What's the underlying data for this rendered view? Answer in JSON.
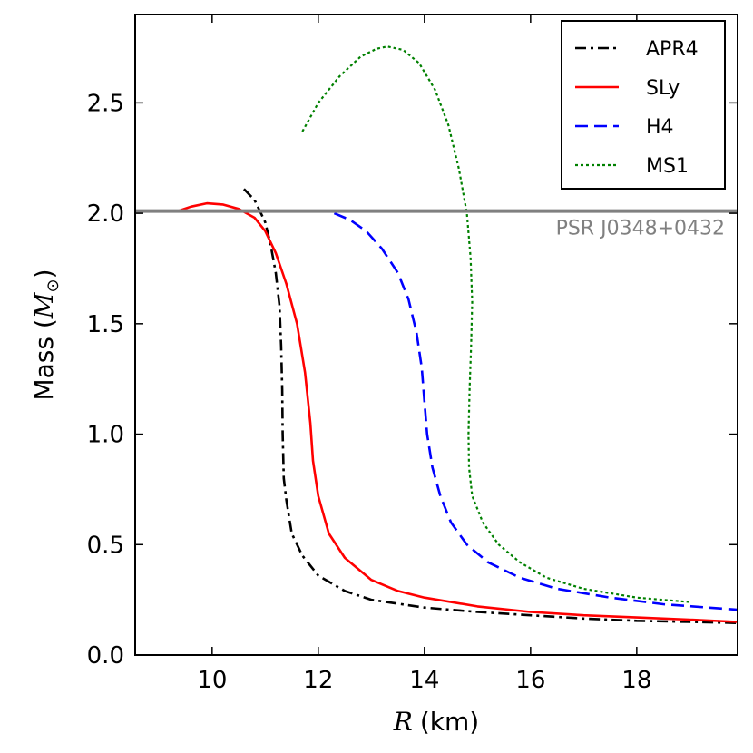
{
  "chart_data": {
    "type": "line",
    "title": "",
    "xlabel_var": "R",
    "xlabel_unit": "(km)",
    "ylabel_text": "Mass (",
    "ylabel_var": "M",
    "ylabel_sub": "⊙",
    "ylabel_close": ")",
    "xlim": [
      8.55,
      19.9
    ],
    "ylim": [
      0.0,
      2.9
    ],
    "x_ticks": [
      10,
      12,
      14,
      16,
      18
    ],
    "y_ticks": [
      0.0,
      0.5,
      1.0,
      1.5,
      2.0,
      2.5
    ],
    "x_tick_labels": [
      "10",
      "12",
      "14",
      "16",
      "18"
    ],
    "y_tick_labels": [
      "0.0",
      "0.5",
      "1.0",
      "1.5",
      "2.0",
      "2.5"
    ],
    "reference_line": {
      "label": "PSR J0348+0432",
      "mass": 2.01,
      "color": "#808080"
    },
    "legend_position": "top-right",
    "series": [
      {
        "name": "APR4",
        "color": "#000000",
        "style": "dashdot",
        "points": [
          [
            10.6,
            2.11
          ],
          [
            10.8,
            2.06
          ],
          [
            11.0,
            1.96
          ],
          [
            11.1,
            1.86
          ],
          [
            11.2,
            1.73
          ],
          [
            11.27,
            1.58
          ],
          [
            11.3,
            1.4
          ],
          [
            11.32,
            1.2
          ],
          [
            11.33,
            1.0
          ],
          [
            11.35,
            0.8
          ],
          [
            11.4,
            0.7
          ],
          [
            11.5,
            0.55
          ],
          [
            11.7,
            0.45
          ],
          [
            12.0,
            0.36
          ],
          [
            12.5,
            0.29
          ],
          [
            13.0,
            0.25
          ],
          [
            14.0,
            0.215
          ],
          [
            15.0,
            0.195
          ],
          [
            16.0,
            0.18
          ],
          [
            17.0,
            0.165
          ],
          [
            18.0,
            0.155
          ],
          [
            19.0,
            0.15
          ],
          [
            19.9,
            0.145
          ]
        ]
      },
      {
        "name": "SLy",
        "color": "#ff0000",
        "style": "solid",
        "points": [
          [
            9.35,
            2.01
          ],
          [
            9.6,
            2.03
          ],
          [
            9.9,
            2.045
          ],
          [
            10.2,
            2.04
          ],
          [
            10.5,
            2.02
          ],
          [
            10.8,
            1.98
          ],
          [
            11.0,
            1.92
          ],
          [
            11.2,
            1.82
          ],
          [
            11.4,
            1.68
          ],
          [
            11.6,
            1.5
          ],
          [
            11.75,
            1.28
          ],
          [
            11.85,
            1.05
          ],
          [
            11.9,
            0.88
          ],
          [
            12.0,
            0.72
          ],
          [
            12.2,
            0.55
          ],
          [
            12.5,
            0.44
          ],
          [
            13.0,
            0.34
          ],
          [
            13.5,
            0.29
          ],
          [
            14.0,
            0.26
          ],
          [
            15.0,
            0.22
          ],
          [
            16.0,
            0.195
          ],
          [
            17.0,
            0.18
          ],
          [
            18.0,
            0.17
          ],
          [
            19.0,
            0.16
          ],
          [
            19.9,
            0.15
          ]
        ]
      },
      {
        "name": "H4",
        "color": "#0000ff",
        "style": "dashed",
        "points": [
          [
            12.3,
            2.0
          ],
          [
            12.6,
            1.97
          ],
          [
            12.9,
            1.92
          ],
          [
            13.2,
            1.84
          ],
          [
            13.5,
            1.73
          ],
          [
            13.7,
            1.61
          ],
          [
            13.85,
            1.46
          ],
          [
            13.95,
            1.3
          ],
          [
            14.0,
            1.15
          ],
          [
            14.05,
            1.0
          ],
          [
            14.15,
            0.85
          ],
          [
            14.3,
            0.72
          ],
          [
            14.5,
            0.6
          ],
          [
            14.8,
            0.5
          ],
          [
            15.2,
            0.42
          ],
          [
            15.8,
            0.35
          ],
          [
            16.5,
            0.3
          ],
          [
            17.5,
            0.26
          ],
          [
            18.5,
            0.23
          ],
          [
            19.9,
            0.205
          ]
        ]
      },
      {
        "name": "MS1",
        "color": "#008000",
        "style": "dotted",
        "points": [
          [
            11.7,
            2.37
          ],
          [
            12.0,
            2.5
          ],
          [
            12.4,
            2.62
          ],
          [
            12.8,
            2.71
          ],
          [
            13.1,
            2.745
          ],
          [
            13.3,
            2.755
          ],
          [
            13.6,
            2.74
          ],
          [
            13.9,
            2.68
          ],
          [
            14.2,
            2.56
          ],
          [
            14.45,
            2.4
          ],
          [
            14.65,
            2.2
          ],
          [
            14.8,
            2.0
          ],
          [
            14.87,
            1.8
          ],
          [
            14.9,
            1.6
          ],
          [
            14.88,
            1.4
          ],
          [
            14.85,
            1.2
          ],
          [
            14.83,
            1.0
          ],
          [
            14.84,
            0.85
          ],
          [
            14.9,
            0.72
          ],
          [
            15.1,
            0.6
          ],
          [
            15.4,
            0.5
          ],
          [
            15.8,
            0.42
          ],
          [
            16.3,
            0.35
          ],
          [
            17.0,
            0.3
          ],
          [
            18.0,
            0.26
          ],
          [
            19.0,
            0.24
          ]
        ]
      }
    ]
  }
}
